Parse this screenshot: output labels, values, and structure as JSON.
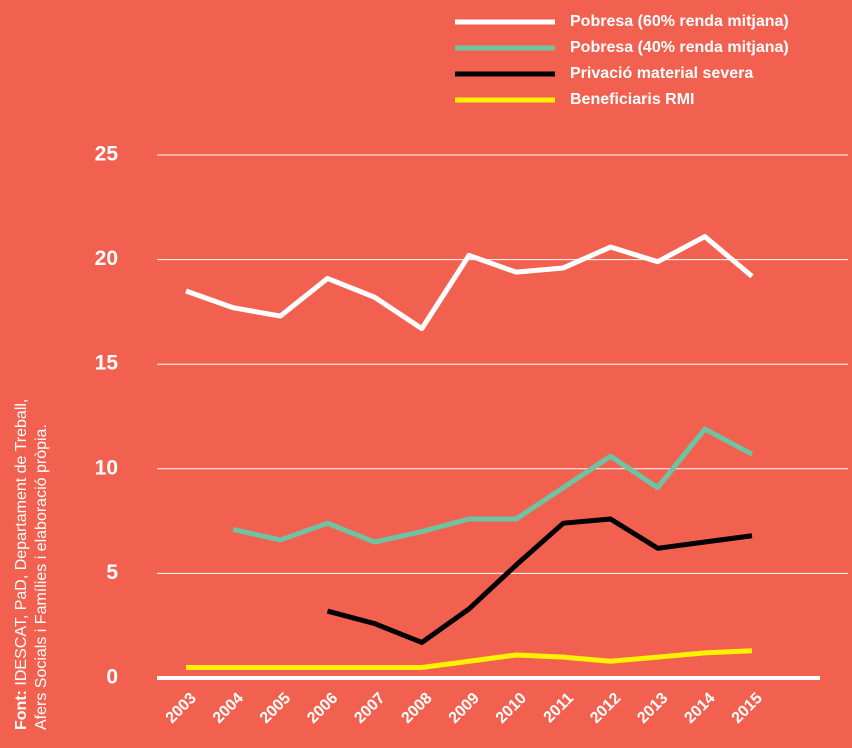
{
  "chart_data": {
    "type": "line",
    "categories": [
      "2003",
      "2004",
      "2005",
      "2006",
      "2007",
      "2008",
      "2009",
      "2010",
      "2011",
      "2012",
      "2013",
      "2014",
      "2015"
    ],
    "series": [
      {
        "name": "Pobresa (60% renda mitjana)",
        "color": "#ffffff",
        "values": [
          18.5,
          17.7,
          17.3,
          19.1,
          18.2,
          16.7,
          20.2,
          19.4,
          19.6,
          20.6,
          19.9,
          21.1,
          19.2
        ]
      },
      {
        "name": "Pobresa (40% renda mitjana)",
        "color": "#6ec3a3",
        "values": [
          null,
          7.1,
          6.6,
          7.4,
          6.5,
          7.0,
          7.6,
          7.6,
          9.1,
          10.6,
          9.1,
          11.9,
          10.7
        ]
      },
      {
        "name": "Privació material severa",
        "color": "#000000",
        "values": [
          null,
          null,
          null,
          3.2,
          2.6,
          1.7,
          3.3,
          5.4,
          7.4,
          7.6,
          6.2,
          6.5,
          6.8
        ]
      },
      {
        "name": "Beneficiaris RMI",
        "color": "#fff200",
        "values": [
          0.5,
          0.5,
          0.5,
          0.5,
          0.5,
          0.5,
          0.8,
          1.1,
          1.0,
          0.8,
          1.0,
          1.2,
          1.3
        ]
      }
    ],
    "ylim": [
      0,
      25
    ],
    "yticks": [
      0,
      5,
      10,
      15,
      20,
      25
    ],
    "grid": true,
    "source_label": "Font:",
    "source_lines": [
      "IDESCAT, PaD, Departament de Treball,",
      "Afers Socials i Famílies i elaboració pròpia."
    ]
  }
}
